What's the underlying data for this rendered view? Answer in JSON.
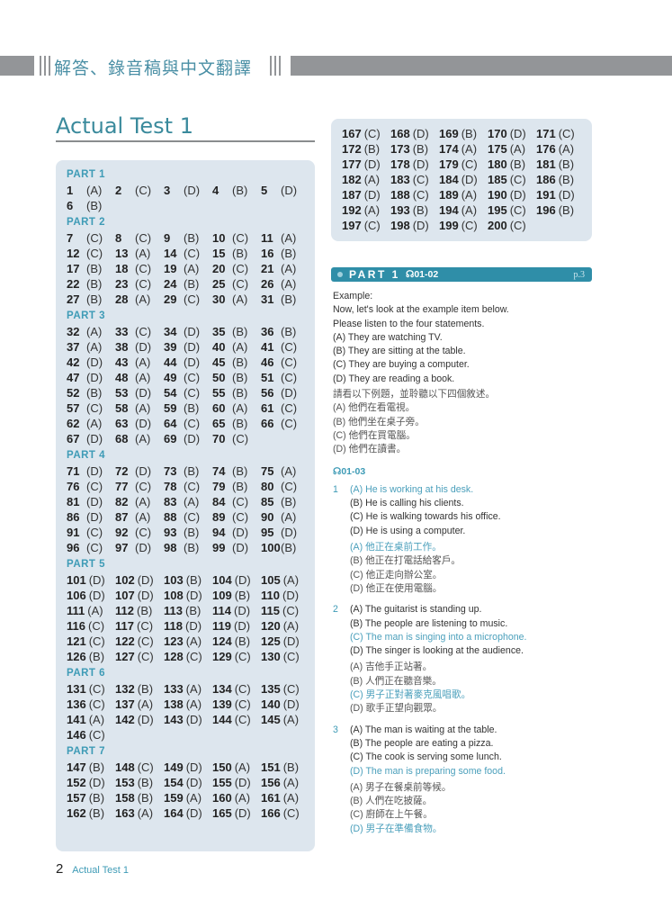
{
  "header": {
    "title": "解答、錄音稿與中文翻譯"
  },
  "test_title": "Actual Test 1",
  "answer_key": {
    "parts": [
      {
        "label": "PART 1",
        "style": "sep",
        "answers": [
          [
            1,
            "(A)"
          ],
          [
            2,
            "(C)"
          ],
          [
            3,
            "(D)"
          ],
          [
            4,
            "(B)"
          ],
          [
            5,
            "(D)"
          ],
          [
            6,
            "(B)"
          ]
        ]
      },
      {
        "label": "PART 2",
        "style": "sep",
        "answers": [
          [
            7,
            "(C)"
          ],
          [
            8,
            "(C)"
          ],
          [
            9,
            "(B)"
          ],
          [
            10,
            "(C)"
          ],
          [
            11,
            "(A)"
          ],
          [
            12,
            "(C)"
          ],
          [
            13,
            "(A)"
          ],
          [
            14,
            "(C)"
          ],
          [
            15,
            "(B)"
          ],
          [
            16,
            "(B)"
          ],
          [
            17,
            "(B)"
          ],
          [
            18,
            "(C)"
          ],
          [
            19,
            "(A)"
          ],
          [
            20,
            "(C)"
          ],
          [
            21,
            "(A)"
          ],
          [
            22,
            "(B)"
          ],
          [
            23,
            "(C)"
          ],
          [
            24,
            "(B)"
          ],
          [
            25,
            "(C)"
          ],
          [
            26,
            "(A)"
          ],
          [
            27,
            "(B)"
          ],
          [
            28,
            "(A)"
          ],
          [
            29,
            "(C)"
          ],
          [
            30,
            "(A)"
          ],
          [
            31,
            "(B)"
          ]
        ]
      },
      {
        "label": "PART 3",
        "style": "sep",
        "answers": [
          [
            32,
            "(A)"
          ],
          [
            33,
            "(C)"
          ],
          [
            34,
            "(D)"
          ],
          [
            35,
            "(B)"
          ],
          [
            36,
            "(B)"
          ],
          [
            37,
            "(A)"
          ],
          [
            38,
            "(D)"
          ],
          [
            39,
            "(D)"
          ],
          [
            40,
            "(A)"
          ],
          [
            41,
            "(C)"
          ],
          [
            42,
            "(D)"
          ],
          [
            43,
            "(A)"
          ],
          [
            44,
            "(D)"
          ],
          [
            45,
            "(B)"
          ],
          [
            46,
            "(C)"
          ],
          [
            47,
            "(D)"
          ],
          [
            48,
            "(A)"
          ],
          [
            49,
            "(C)"
          ],
          [
            50,
            "(B)"
          ],
          [
            51,
            "(C)"
          ],
          [
            52,
            "(B)"
          ],
          [
            53,
            "(D)"
          ],
          [
            54,
            "(C)"
          ],
          [
            55,
            "(B)"
          ],
          [
            56,
            "(D)"
          ],
          [
            57,
            "(C)"
          ],
          [
            58,
            "(A)"
          ],
          [
            59,
            "(B)"
          ],
          [
            60,
            "(A)"
          ],
          [
            61,
            "(C)"
          ],
          [
            62,
            "(A)"
          ],
          [
            63,
            "(D)"
          ],
          [
            64,
            "(C)"
          ],
          [
            65,
            "(B)"
          ],
          [
            66,
            "(C)"
          ],
          [
            67,
            "(D)"
          ],
          [
            68,
            "(A)"
          ],
          [
            69,
            "(D)"
          ],
          [
            70,
            "(C)"
          ]
        ]
      },
      {
        "label": "PART 4",
        "style": "sep",
        "answers": [
          [
            71,
            "(D)"
          ],
          [
            72,
            "(D)"
          ],
          [
            73,
            "(B)"
          ],
          [
            74,
            "(B)"
          ],
          [
            75,
            "(A)"
          ],
          [
            76,
            "(C)"
          ],
          [
            77,
            "(C)"
          ],
          [
            78,
            "(C)"
          ],
          [
            79,
            "(B)"
          ],
          [
            80,
            "(C)"
          ],
          [
            81,
            "(D)"
          ],
          [
            82,
            "(A)"
          ],
          [
            83,
            "(A)"
          ],
          [
            84,
            "(C)"
          ],
          [
            85,
            "(B)"
          ],
          [
            86,
            "(D)"
          ],
          [
            87,
            "(A)"
          ],
          [
            88,
            "(C)"
          ],
          [
            89,
            "(C)"
          ],
          [
            90,
            "(A)"
          ],
          [
            91,
            "(C)"
          ],
          [
            92,
            "(C)"
          ],
          [
            93,
            "(B)"
          ],
          [
            94,
            "(D)"
          ],
          [
            95,
            "(D)"
          ],
          [
            96,
            "(C)"
          ],
          [
            97,
            "(D)"
          ],
          [
            98,
            "(B)"
          ],
          [
            99,
            "(D)"
          ],
          [
            100,
            "(B)"
          ]
        ]
      },
      {
        "label": "PART 5",
        "style": "adj",
        "answers": [
          [
            101,
            "(D)"
          ],
          [
            102,
            "(D)"
          ],
          [
            103,
            "(B)"
          ],
          [
            104,
            "(D)"
          ],
          [
            105,
            "(A)"
          ],
          [
            106,
            "(D)"
          ],
          [
            107,
            "(D)"
          ],
          [
            108,
            "(D)"
          ],
          [
            109,
            "(B)"
          ],
          [
            110,
            "(D)"
          ],
          [
            111,
            "(A)"
          ],
          [
            112,
            "(B)"
          ],
          [
            113,
            "(B)"
          ],
          [
            114,
            "(D)"
          ],
          [
            115,
            "(C)"
          ],
          [
            116,
            "(C)"
          ],
          [
            117,
            "(C)"
          ],
          [
            118,
            "(D)"
          ],
          [
            119,
            "(D)"
          ],
          [
            120,
            "(A)"
          ],
          [
            121,
            "(C)"
          ],
          [
            122,
            "(C)"
          ],
          [
            123,
            "(A)"
          ],
          [
            124,
            "(B)"
          ],
          [
            125,
            "(D)"
          ],
          [
            126,
            "(B)"
          ],
          [
            127,
            "(C)"
          ],
          [
            128,
            "(C)"
          ],
          [
            129,
            "(C)"
          ],
          [
            130,
            "(C)"
          ]
        ]
      },
      {
        "label": "PART 6",
        "style": "adj",
        "answers": [
          [
            131,
            "(C)"
          ],
          [
            132,
            "(B)"
          ],
          [
            133,
            "(A)"
          ],
          [
            134,
            "(C)"
          ],
          [
            135,
            "(C)"
          ],
          [
            136,
            "(C)"
          ],
          [
            137,
            "(A)"
          ],
          [
            138,
            "(A)"
          ],
          [
            139,
            "(C)"
          ],
          [
            140,
            "(D)"
          ],
          [
            141,
            "(A)"
          ],
          [
            142,
            "(D)"
          ],
          [
            143,
            "(D)"
          ],
          [
            144,
            "(C)"
          ],
          [
            145,
            "(A)"
          ],
          [
            146,
            "(C)"
          ]
        ]
      },
      {
        "label": "PART 7",
        "style": "adj",
        "answers": [
          [
            147,
            "(B)"
          ],
          [
            148,
            "(C)"
          ],
          [
            149,
            "(D)"
          ],
          [
            150,
            "(A)"
          ],
          [
            151,
            "(B)"
          ],
          [
            152,
            "(D)"
          ],
          [
            153,
            "(B)"
          ],
          [
            154,
            "(D)"
          ],
          [
            155,
            "(D)"
          ],
          [
            156,
            "(A)"
          ],
          [
            157,
            "(B)"
          ],
          [
            158,
            "(B)"
          ],
          [
            159,
            "(A)"
          ],
          [
            160,
            "(A)"
          ],
          [
            161,
            "(A)"
          ],
          [
            162,
            "(B)"
          ],
          [
            163,
            "(A)"
          ],
          [
            164,
            "(D)"
          ],
          [
            165,
            "(D)"
          ],
          [
            166,
            "(C)"
          ]
        ]
      }
    ],
    "continued": [
      [
        167,
        "(C)"
      ],
      [
        168,
        "(D)"
      ],
      [
        169,
        "(B)"
      ],
      [
        170,
        "(D)"
      ],
      [
        171,
        "(C)"
      ],
      [
        172,
        "(B)"
      ],
      [
        173,
        "(B)"
      ],
      [
        174,
        "(A)"
      ],
      [
        175,
        "(A)"
      ],
      [
        176,
        "(A)"
      ],
      [
        177,
        "(D)"
      ],
      [
        178,
        "(D)"
      ],
      [
        179,
        "(C)"
      ],
      [
        180,
        "(B)"
      ],
      [
        181,
        "(B)"
      ],
      [
        182,
        "(A)"
      ],
      [
        183,
        "(C)"
      ],
      [
        184,
        "(D)"
      ],
      [
        185,
        "(C)"
      ],
      [
        186,
        "(B)"
      ],
      [
        187,
        "(D)"
      ],
      [
        188,
        "(C)"
      ],
      [
        189,
        "(A)"
      ],
      [
        190,
        "(D)"
      ],
      [
        191,
        "(D)"
      ],
      [
        192,
        "(A)"
      ],
      [
        193,
        "(B)"
      ],
      [
        194,
        "(A)"
      ],
      [
        195,
        "(C)"
      ],
      [
        196,
        "(B)"
      ],
      [
        197,
        "(C)"
      ],
      [
        198,
        "(D)"
      ],
      [
        199,
        "(C)"
      ],
      [
        200,
        "(C)"
      ]
    ]
  },
  "section": {
    "label": "PART 1",
    "track": "01-02",
    "page_ref": "p.3",
    "headphones_icon": "headphones-icon"
  },
  "example": {
    "en": [
      "Example:",
      "Now, let's look at the example item below.",
      "Please listen to the four statements.",
      "(A) They are watching TV.",
      "(B) They are sitting at the table.",
      "(C) They are buying a computer.",
      "(D) They are reading a book."
    ],
    "zh": [
      "請看以下例題，並聆聽以下四個敘述。",
      "(A) 他們在看電視。",
      "(B) 他們坐在桌子旁。",
      "(C) 他們在買電腦。",
      "(D) 他們在讀書。"
    ]
  },
  "track2": "01-03",
  "questions": [
    {
      "num": "1",
      "correct": 0,
      "en": [
        "(A) He is working at his desk.",
        "(B) He is calling his clients.",
        "(C) He is walking towards his office.",
        "(D) He is using a computer."
      ],
      "zh": [
        "(A) 他正在桌前工作。",
        "(B) 他正在打電話給客戶。",
        "(C) 他正走向辦公室。",
        "(D) 他正在使用電腦。"
      ]
    },
    {
      "num": "2",
      "correct": 2,
      "en": [
        "(A) The guitarist is standing up.",
        "(B) The people are listening to music.",
        "(C) The man is singing into a microphone.",
        "(D) The singer is looking at the audience."
      ],
      "zh": [
        "(A) 吉他手正站著。",
        "(B) 人們正在聽音樂。",
        "(C) 男子正對著麥克風唱歌。",
        "(D) 歌手正望向觀眾。"
      ]
    },
    {
      "num": "3",
      "correct": 3,
      "en": [
        "(A) The man is waiting at the table.",
        "(B) The people are eating a pizza.",
        "(C) The cook is serving some lunch.",
        "(D) The man is preparing some food."
      ],
      "zh": [
        "(A) 男子在餐桌前等候。",
        "(B) 人們在吃披薩。",
        "(C) 廚師在上午餐。",
        "(D) 男子在準備食物。"
      ]
    }
  ],
  "footer": {
    "page_number": "2",
    "title": "Actual Test 1"
  },
  "colors": {
    "accent": "#3e9bb6",
    "highlight": "#4a9fbb",
    "banner": "#2f8ea8",
    "box": "#dde6ee",
    "header_gray": "#939598"
  }
}
